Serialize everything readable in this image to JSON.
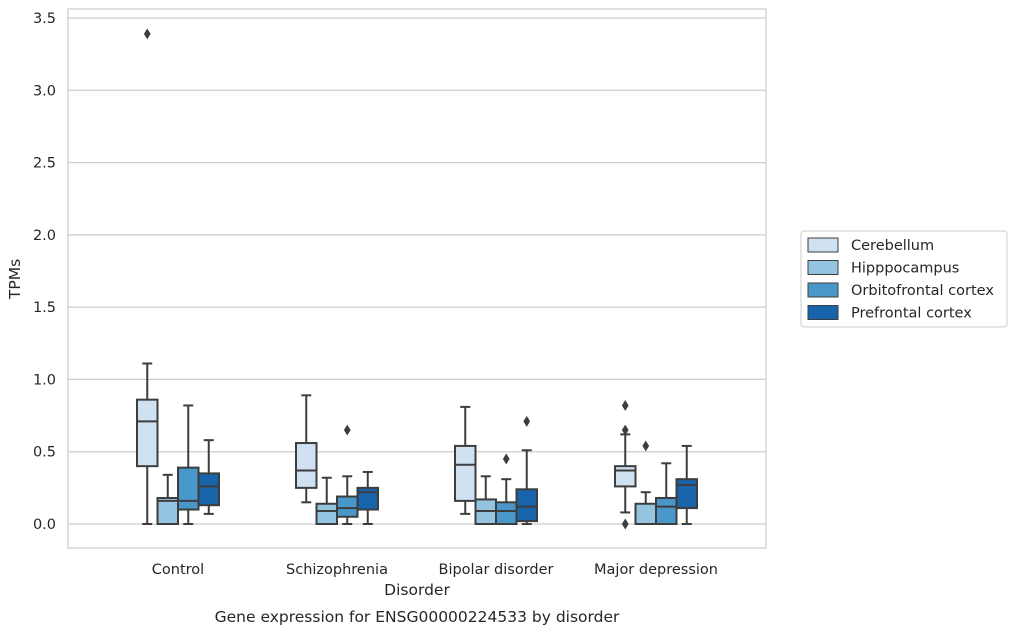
{
  "chart_data": {
    "type": "box",
    "title": "",
    "caption": "Gene expression for ENSG00000224533 by disorder",
    "xlabel": "Disorder",
    "ylabel": "TPMs",
    "ylim": [
      -0.16,
      3.56
    ],
    "yticks": [
      "0.0",
      "0.5",
      "1.0",
      "1.5",
      "2.0",
      "2.5",
      "3.0",
      "3.5"
    ],
    "categories": [
      "Control",
      "Schizophrenia",
      "Bipolar disorder",
      "Major depression"
    ],
    "grid": "horizontal",
    "legend_position": "right",
    "colors": {
      "Cerebellum": "#d0e1f2",
      "Hipppocampus": "#94c4df",
      "Orbitofrontal cortex": "#4a98c9",
      "Prefrontal cortex": "#1764ab",
      "outline": "#3d3d3d",
      "grid": "#cccccc"
    },
    "series": [
      {
        "name": "Cerebellum",
        "boxes": [
          {
            "whislo": 0.0,
            "q1": 0.4,
            "med": 0.71,
            "q3": 0.86,
            "whishi": 1.11,
            "fliers": [
              3.39
            ]
          },
          {
            "whislo": 0.15,
            "q1": 0.25,
            "med": 0.37,
            "q3": 0.56,
            "whishi": 0.89,
            "fliers": []
          },
          {
            "whislo": 0.07,
            "q1": 0.16,
            "med": 0.41,
            "q3": 0.54,
            "whishi": 0.81,
            "fliers": []
          },
          {
            "whislo": 0.08,
            "q1": 0.26,
            "med": 0.37,
            "q3": 0.4,
            "whishi": 0.62,
            "fliers": [
              0.0,
              0.65,
              0.82
            ]
          }
        ]
      },
      {
        "name": "Hipppocampus",
        "boxes": [
          {
            "whislo": 0.0,
            "q1": 0.0,
            "med": 0.16,
            "q3": 0.18,
            "whishi": 0.34,
            "fliers": []
          },
          {
            "whislo": 0.0,
            "q1": 0.0,
            "med": 0.09,
            "q3": 0.14,
            "whishi": 0.32,
            "fliers": []
          },
          {
            "whislo": 0.0,
            "q1": 0.0,
            "med": 0.09,
            "q3": 0.17,
            "whishi": 0.33,
            "fliers": []
          },
          {
            "whislo": 0.0,
            "q1": 0.0,
            "med": 0.0,
            "q3": 0.14,
            "whishi": 0.22,
            "fliers": [
              0.54
            ]
          }
        ]
      },
      {
        "name": "Orbitofrontal cortex",
        "boxes": [
          {
            "whislo": 0.0,
            "q1": 0.1,
            "med": 0.16,
            "q3": 0.39,
            "whishi": 0.82,
            "fliers": []
          },
          {
            "whislo": 0.0,
            "q1": 0.05,
            "med": 0.11,
            "q3": 0.19,
            "whishi": 0.33,
            "fliers": [
              0.65
            ]
          },
          {
            "whislo": 0.0,
            "q1": 0.0,
            "med": 0.09,
            "q3": 0.15,
            "whishi": 0.31,
            "fliers": [
              0.45
            ]
          },
          {
            "whislo": 0.0,
            "q1": 0.0,
            "med": 0.12,
            "q3": 0.18,
            "whishi": 0.42,
            "fliers": []
          }
        ]
      },
      {
        "name": "Prefrontal cortex",
        "boxes": [
          {
            "whislo": 0.07,
            "q1": 0.13,
            "med": 0.26,
            "q3": 0.35,
            "whishi": 0.58,
            "fliers": []
          },
          {
            "whislo": 0.0,
            "q1": 0.1,
            "med": 0.22,
            "q3": 0.25,
            "whishi": 0.36,
            "fliers": []
          },
          {
            "whislo": 0.0,
            "q1": 0.02,
            "med": 0.12,
            "q3": 0.24,
            "whishi": 0.51,
            "fliers": [
              0.71
            ]
          },
          {
            "whislo": 0.0,
            "q1": 0.11,
            "med": 0.27,
            "q3": 0.31,
            "whishi": 0.54,
            "fliers": []
          }
        ]
      }
    ]
  }
}
